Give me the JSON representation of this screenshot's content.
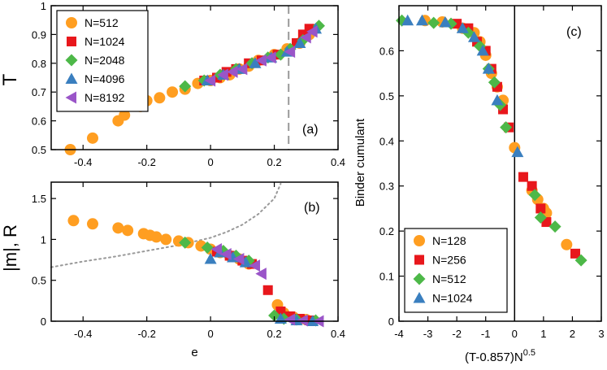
{
  "colors": {
    "orange": "#ff9e21",
    "red": "#e8171c",
    "green": "#4db848",
    "blue": "#3a7fbf",
    "purple": "#9a55c8",
    "grid": "#999999"
  },
  "chart_data": [
    {
      "id": "a",
      "type": "scatter",
      "panel_label": "(a)",
      "xlabel": "",
      "ylabel": "T",
      "xlim": [
        -0.5,
        0.4
      ],
      "ylim": [
        0.5,
        1.0
      ],
      "xticks": [
        "-0.4",
        "-0.2",
        "0",
        "0.2",
        "0.4"
      ],
      "xtick_values": [
        -0.4,
        -0.2,
        0,
        0.2,
        0.4
      ],
      "yticks": [
        "0.5",
        "0.6",
        "0.7",
        "0.8",
        "0.9",
        "1"
      ],
      "ytick_values": [
        0.5,
        0.6,
        0.7,
        0.8,
        0.9,
        1.0
      ],
      "vline": 0.245,
      "legend_position": "top-left",
      "series": [
        {
          "name": "N=512",
          "marker": "circle",
          "color": "orange",
          "x": [
            -0.44,
            -0.37,
            -0.29,
            -0.27,
            -0.22,
            -0.2,
            -0.16,
            -0.12,
            -0.08,
            -0.04,
            0.0,
            0.03,
            0.06,
            0.09,
            0.12,
            0.15,
            0.2,
            0.24,
            0.28,
            0.31
          ],
          "y": [
            0.5,
            0.54,
            0.6,
            0.62,
            0.65,
            0.67,
            0.68,
            0.7,
            0.71,
            0.73,
            0.74,
            0.75,
            0.76,
            0.78,
            0.79,
            0.81,
            0.83,
            0.85,
            0.87,
            0.9
          ]
        },
        {
          "name": "N=1024",
          "marker": "square",
          "color": "red",
          "x": [
            -0.02,
            0.02,
            0.05,
            0.08,
            0.12,
            0.16,
            0.21,
            0.27,
            0.29,
            0.31
          ],
          "y": [
            0.74,
            0.75,
            0.77,
            0.78,
            0.8,
            0.81,
            0.83,
            0.87,
            0.9,
            0.92
          ]
        },
        {
          "name": "N=2048",
          "marker": "diamond",
          "color": "green",
          "x": [
            -0.08,
            -0.02,
            0.03,
            0.08,
            0.13,
            0.18,
            0.22,
            0.25,
            0.29,
            0.34
          ],
          "y": [
            0.72,
            0.74,
            0.76,
            0.78,
            0.8,
            0.82,
            0.83,
            0.85,
            0.88,
            0.93
          ]
        },
        {
          "name": "N=4096",
          "marker": "triangle-up",
          "color": "blue",
          "x": [
            -0.01,
            0.04,
            0.09,
            0.14,
            0.19,
            0.24,
            0.28,
            0.33
          ],
          "y": [
            0.74,
            0.76,
            0.78,
            0.8,
            0.82,
            0.84,
            0.87,
            0.92
          ]
        },
        {
          "name": "N=8192",
          "marker": "triangle-left",
          "color": "purple",
          "x": [
            0.0,
            0.04,
            0.07,
            0.1,
            0.16,
            0.19,
            0.25,
            0.3,
            0.32
          ],
          "y": [
            0.74,
            0.76,
            0.77,
            0.78,
            0.81,
            0.82,
            0.84,
            0.89,
            0.91
          ]
        }
      ]
    },
    {
      "id": "b",
      "type": "scatter",
      "panel_label": "(b)",
      "xlabel": "e",
      "ylabel": "|m|, R",
      "xlim": [
        -0.5,
        0.4
      ],
      "ylim": [
        0.0,
        1.7
      ],
      "xticks": [
        "-0.4",
        "-0.2",
        "0",
        "0.2",
        "0.4"
      ],
      "xtick_values": [
        -0.4,
        -0.2,
        0,
        0.2,
        0.4
      ],
      "yticks": [
        "0",
        "0.5",
        "1",
        "1.5"
      ],
      "ytick_values": [
        0.0,
        0.5,
        1.0,
        1.5
      ],
      "dotted_curve": {
        "x": [
          -0.5,
          -0.4,
          -0.3,
          -0.2,
          -0.1,
          0.0,
          0.05,
          0.1,
          0.15,
          0.2,
          0.22
        ],
        "y": [
          0.66,
          0.73,
          0.79,
          0.86,
          0.93,
          1.02,
          1.09,
          1.18,
          1.31,
          1.5,
          1.68
        ]
      },
      "series": [
        {
          "name": "N=512",
          "marker": "circle",
          "color": "orange",
          "x": [
            -0.43,
            -0.37,
            -0.29,
            -0.26,
            -0.21,
            -0.19,
            -0.17,
            -0.14,
            -0.1,
            -0.07,
            -0.03,
            0.0,
            0.03,
            0.06,
            0.09,
            0.12,
            0.21,
            0.23,
            0.26,
            0.3
          ],
          "y": [
            1.23,
            1.19,
            1.14,
            1.11,
            1.07,
            1.05,
            1.03,
            1.0,
            0.98,
            0.96,
            0.92,
            0.88,
            0.84,
            0.8,
            0.76,
            0.7,
            0.2,
            0.1,
            0.05,
            0.02
          ]
        },
        {
          "name": "N=1024",
          "marker": "square",
          "color": "red",
          "x": [
            0.02,
            0.06,
            0.1,
            0.13,
            0.18,
            0.22,
            0.25,
            0.28,
            0.31
          ],
          "y": [
            0.85,
            0.8,
            0.74,
            0.7,
            0.38,
            0.12,
            0.06,
            0.03,
            0.01
          ]
        },
        {
          "name": "N=2048",
          "marker": "diamond",
          "color": "green",
          "x": [
            -0.08,
            -0.01,
            0.04,
            0.08,
            0.12,
            0.2,
            0.23,
            0.27,
            0.33
          ],
          "y": [
            0.96,
            0.9,
            0.86,
            0.8,
            0.74,
            0.07,
            0.03,
            0.02,
            0.01
          ]
        },
        {
          "name": "N=4096",
          "marker": "triangle-up",
          "color": "blue",
          "x": [
            0.0,
            0.03,
            0.07,
            0.11,
            0.22,
            0.27,
            0.32
          ],
          "y": [
            0.76,
            0.84,
            0.78,
            0.72,
            0.03,
            0.01,
            0.0
          ]
        },
        {
          "name": "N=8192",
          "marker": "triangle-left",
          "color": "purple",
          "x": [
            0.02,
            0.05,
            0.09,
            0.14,
            0.16,
            0.25,
            0.29,
            0.34
          ],
          "y": [
            0.88,
            0.82,
            0.76,
            0.68,
            0.58,
            0.02,
            0.01,
            0.0
          ]
        }
      ]
    },
    {
      "id": "c",
      "type": "scatter",
      "panel_label": "(c)",
      "xlabel": "(T-0.857)N",
      "xlabel_sup": "0.5",
      "ylabel": "Binder cumulant",
      "xlim": [
        -4,
        3
      ],
      "ylim": [
        0.0,
        0.7
      ],
      "xticks": [
        "-4",
        "-3",
        "-2",
        "-1",
        "0",
        "1",
        "2",
        "3"
      ],
      "xtick_values": [
        -4,
        -3,
        -2,
        -1,
        0,
        1,
        2,
        3
      ],
      "yticks": [
        "0",
        "0.1",
        "0.2",
        "0.3",
        "0.4",
        "0.5",
        "0.6"
      ],
      "ytick_values": [
        0.0,
        0.1,
        0.2,
        0.3,
        0.4,
        0.5,
        0.6
      ],
      "vline": 0,
      "legend_position": "bottom-left",
      "series": [
        {
          "name": "N=128",
          "marker": "circle",
          "color": "orange",
          "x": [
            -3.1,
            -2.5,
            -1.8,
            -1.4,
            -1.2,
            -1.0,
            -0.8,
            -0.6,
            -0.4,
            0.0,
            0.6,
            0.8,
            1.0,
            1.1,
            1.8
          ],
          "y": [
            0.667,
            0.664,
            0.65,
            0.64,
            0.62,
            0.59,
            0.55,
            0.52,
            0.49,
            0.385,
            0.29,
            0.27,
            0.25,
            0.24,
            0.17
          ]
        },
        {
          "name": "N=256",
          "marker": "square",
          "color": "red",
          "x": [
            -2.0,
            -1.6,
            -1.3,
            -1.0,
            -0.8,
            -0.6,
            -0.4,
            -0.2,
            0.3,
            0.6,
            0.9,
            1.1,
            2.1
          ],
          "y": [
            0.66,
            0.65,
            0.62,
            0.6,
            0.56,
            0.52,
            0.47,
            0.43,
            0.32,
            0.3,
            0.25,
            0.22,
            0.15
          ]
        },
        {
          "name": "N=512",
          "marker": "diamond",
          "color": "green",
          "x": [
            -3.9,
            -2.8,
            -2.2,
            -1.6,
            -1.2,
            -0.9,
            -0.7,
            -0.5,
            -0.3,
            0.7,
            0.9,
            1.4,
            2.3
          ],
          "y": [
            0.667,
            0.662,
            0.66,
            0.64,
            0.61,
            0.56,
            0.53,
            0.48,
            0.43,
            0.28,
            0.23,
            0.21,
            0.135
          ]
        },
        {
          "name": "N=1024",
          "marker": "triangle-up",
          "color": "blue",
          "x": [
            -3.7,
            -3.2,
            -2.4,
            -1.8,
            -1.4,
            -1.1,
            -0.9,
            -0.6,
            0.1
          ],
          "y": [
            0.667,
            0.667,
            0.663,
            0.65,
            0.63,
            0.6,
            0.56,
            0.49,
            0.375
          ]
        }
      ]
    }
  ]
}
